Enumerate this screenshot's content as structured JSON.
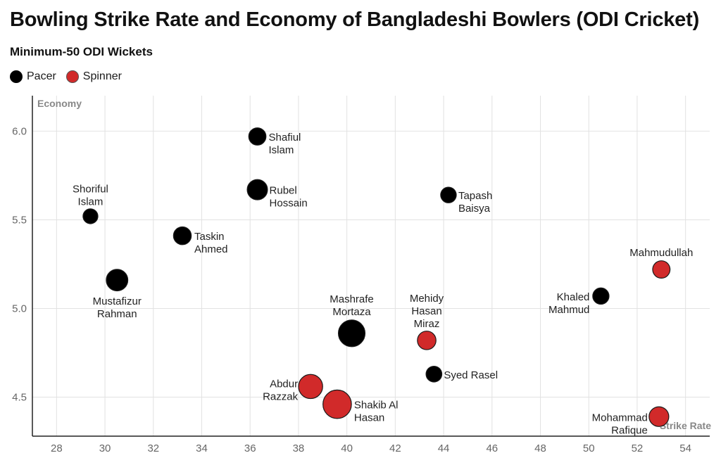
{
  "chart_data": {
    "type": "scatter",
    "title": "Bowling Strike Rate and Economy of Bangladeshi Bowlers (ODI Cricket)",
    "subtitle": "Minimum-50 ODI Wickets",
    "xlabel": "Strike Rate",
    "ylabel": "Economy",
    "xlim": [
      27,
      55
    ],
    "ylim": [
      4.28,
      6.2
    ],
    "xticks": [
      28,
      30,
      32,
      34,
      36,
      38,
      40,
      42,
      44,
      46,
      48,
      50,
      52,
      54
    ],
    "yticks": [
      4.5,
      5.0,
      5.5,
      6.0
    ],
    "ytick_labels": [
      "4.5",
      "5.0",
      "5.5",
      "6.0"
    ],
    "legend_position": "top-left",
    "grid": true,
    "series": [
      {
        "name": "Pacer",
        "color": "#000000"
      },
      {
        "name": "Spinner",
        "color": "#d12a2a"
      }
    ],
    "points": [
      {
        "name": "Shafiul Islam",
        "lines": [
          "Shafiul",
          "Islam"
        ],
        "category": "Pacer",
        "x": 36.3,
        "y": 5.97,
        "wickets": 80
      },
      {
        "name": "Rubel Hossain",
        "lines": [
          "Rubel",
          "Hossain"
        ],
        "category": "Pacer",
        "x": 36.3,
        "y": 5.67,
        "wickets": 129
      },
      {
        "name": "Shoriful Islam",
        "lines": [
          "Shoriful",
          "Islam"
        ],
        "category": "Pacer",
        "x": 29.4,
        "y": 5.52,
        "wickets": 50
      },
      {
        "name": "Tapash Baisya",
        "lines": [
          "Tapash",
          "Baisya"
        ],
        "category": "Pacer",
        "x": 44.2,
        "y": 5.64,
        "wickets": 59
      },
      {
        "name": "Taskin Ahmed",
        "lines": [
          "Taskin",
          "Ahmed"
        ],
        "category": "Pacer",
        "x": 33.2,
        "y": 5.41,
        "wickets": 88
      },
      {
        "name": "Mustafizur Rahman",
        "lines": [
          "Mustafizur",
          "Rahman"
        ],
        "category": "Pacer",
        "x": 30.5,
        "y": 5.16,
        "wickets": 153
      },
      {
        "name": "Mashrafe Mortaza",
        "lines": [
          "Mashrafe",
          "Mortaza"
        ],
        "category": "Pacer",
        "x": 40.2,
        "y": 4.86,
        "wickets": 269
      },
      {
        "name": "Mehidy Hasan Miraz",
        "lines": [
          "Mehidy",
          "Hasan",
          "Miraz"
        ],
        "category": "Spinner",
        "x": 43.3,
        "y": 4.82,
        "wickets": 100
      },
      {
        "name": "Syed Rasel",
        "lines": [
          "Syed Rasel"
        ],
        "category": "Pacer",
        "x": 43.6,
        "y": 4.63,
        "wickets": 61
      },
      {
        "name": "Khaled Mahmud",
        "lines": [
          "Khaled",
          "Mahmud"
        ],
        "category": "Pacer",
        "x": 50.5,
        "y": 5.07,
        "wickets": 67
      },
      {
        "name": "Mahmudullah",
        "lines": [
          "Mahmudullah"
        ],
        "category": "Spinner",
        "x": 53.0,
        "y": 5.22,
        "wickets": 82
      },
      {
        "name": "Abdur Razzak",
        "lines": [
          "Abdur",
          "Razzak"
        ],
        "category": "Spinner",
        "x": 38.5,
        "y": 4.56,
        "wickets": 207
      },
      {
        "name": "Shakib Al Hasan",
        "lines": [
          "Shakib Al",
          "Hasan"
        ],
        "category": "Spinner",
        "x": 39.6,
        "y": 4.46,
        "wickets": 317
      },
      {
        "name": "Mohammad Rafique",
        "lines": [
          "Mohammad",
          "Rafique"
        ],
        "category": "Spinner",
        "x": 52.9,
        "y": 4.39,
        "wickets": 119
      }
    ]
  }
}
